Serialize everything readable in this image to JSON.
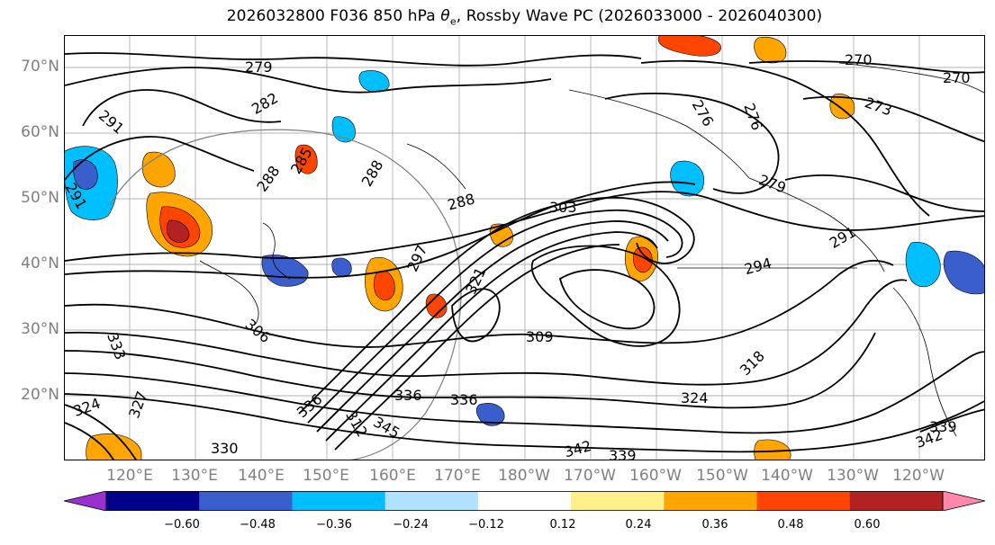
{
  "title": {
    "prefix": "2026032800 F036 850 hPa ",
    "theta": "θ",
    "subscript": "e",
    "suffix": ", Rossby Wave PC (2026033000 - 2026040300)"
  },
  "latitude_labels": [
    "70°N",
    "60°N",
    "50°N",
    "40°N",
    "30°N",
    "20°N"
  ],
  "longitude_labels": [
    "120°E",
    "130°E",
    "140°E",
    "150°E",
    "160°E",
    "170°E",
    "180°W",
    "170°W",
    "160°W",
    "150°W",
    "140°W",
    "130°W",
    "120°W"
  ],
  "contour_labels": [
    "279",
    "282",
    "291",
    "291",
    "288",
    "288",
    "285",
    "288",
    "303",
    "297",
    "321",
    "306",
    "309",
    "294",
    "291",
    "279",
    "276",
    "276",
    "270",
    "273",
    "270",
    "318",
    "324",
    "336",
    "339",
    "342",
    "345",
    "342",
    "336",
    "330",
    "333",
    "324",
    "327",
    "312",
    "336",
    "339"
  ],
  "colorbar": {
    "ticks": [
      "−0.60",
      "−0.48",
      "−0.36",
      "−0.24",
      "−0.12",
      "0.12",
      "0.24",
      "0.36",
      "0.48",
      "0.60"
    ],
    "colors": [
      "#9932cc",
      "#00008b",
      "#3a5fcd",
      "#00bfff",
      "#b0e2ff",
      "#ffffff",
      "#fff08a",
      "#ffa500",
      "#ff4500",
      "#b22222",
      "#ff88aa"
    ]
  }
}
